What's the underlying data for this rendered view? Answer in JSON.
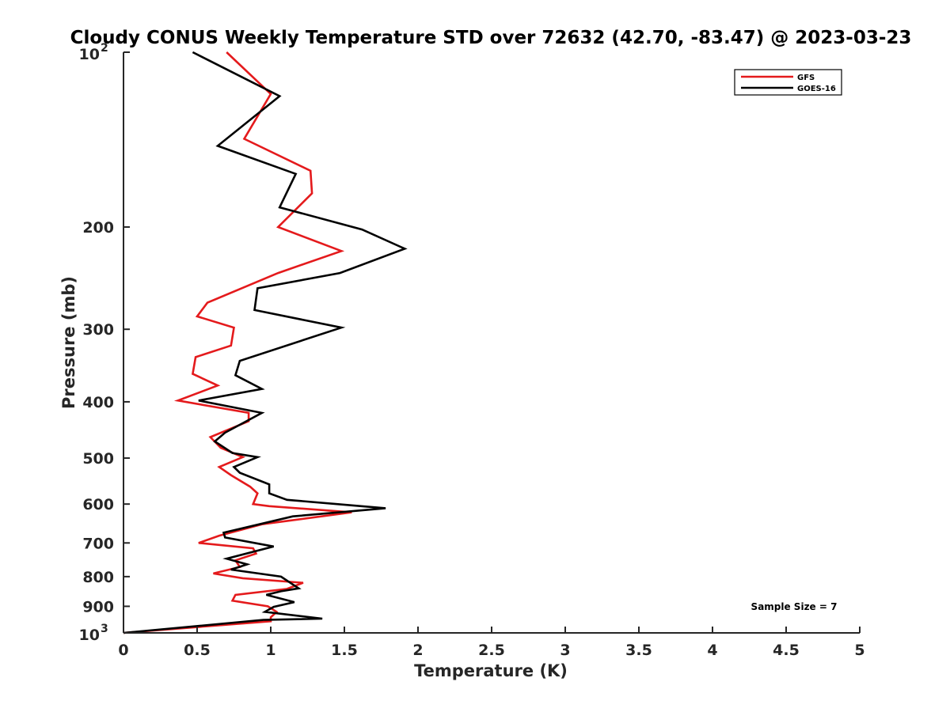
{
  "chart_data": {
    "type": "line",
    "title": "Cloudy CONUS Weekly Temperature STD over 72632 (42.70, -83.47) @ 2023-03-23",
    "xlabel": "Temperature (K)",
    "ylabel": "Pressure (mb)",
    "xlim": [
      0,
      5
    ],
    "ylim": [
      100,
      1000
    ],
    "y_scale": "log",
    "y_reversed": true,
    "x_ticks": [
      "0",
      "0.5",
      "1",
      "1.5",
      "2",
      "2.5",
      "3",
      "3.5",
      "4",
      "4.5",
      "5"
    ],
    "y_ticks": [
      {
        "value": 100,
        "base": "10",
        "exp": "2"
      },
      {
        "value": 200,
        "label": "200"
      },
      {
        "value": 300,
        "label": "300"
      },
      {
        "value": 400,
        "label": "400"
      },
      {
        "value": 500,
        "label": "500"
      },
      {
        "value": 600,
        "label": "600"
      },
      {
        "value": 700,
        "label": "700"
      },
      {
        "value": 800,
        "label": "800"
      },
      {
        "value": 900,
        "label": "900"
      },
      {
        "value": 1000,
        "base": "10",
        "exp": "3"
      }
    ],
    "grid": false,
    "legend_position": "top-right",
    "annotation": "Sample Size = 7",
    "series": [
      {
        "name": "GFS",
        "color": "#e41a1c",
        "points": [
          [
            0.7,
            100
          ],
          [
            1.0,
            118
          ],
          [
            0.82,
            141
          ],
          [
            1.27,
            160
          ],
          [
            1.28,
            175
          ],
          [
            1.05,
            200
          ],
          [
            1.48,
            220
          ],
          [
            1.05,
            240
          ],
          [
            0.57,
            270
          ],
          [
            0.5,
            285
          ],
          [
            0.75,
            298
          ],
          [
            0.73,
            320
          ],
          [
            0.49,
            335
          ],
          [
            0.47,
            358
          ],
          [
            0.64,
            375
          ],
          [
            0.37,
            398
          ],
          [
            0.85,
            418
          ],
          [
            0.85,
            432
          ],
          [
            0.59,
            460
          ],
          [
            0.66,
            480
          ],
          [
            0.81,
            498
          ],
          [
            0.65,
            518
          ],
          [
            0.73,
            535
          ],
          [
            0.86,
            560
          ],
          [
            0.91,
            575
          ],
          [
            0.88,
            600
          ],
          [
            0.99,
            605
          ],
          [
            1.55,
            620
          ],
          [
            0.94,
            650
          ],
          [
            0.65,
            680
          ],
          [
            0.51,
            700
          ],
          [
            0.88,
            715
          ],
          [
            0.9,
            730
          ],
          [
            0.76,
            750
          ],
          [
            0.79,
            770
          ],
          [
            0.61,
            790
          ],
          [
            0.81,
            805
          ],
          [
            1.22,
            820
          ],
          [
            1.11,
            840
          ],
          [
            0.76,
            860
          ],
          [
            0.74,
            880
          ],
          [
            0.98,
            900
          ],
          [
            1.04,
            920
          ],
          [
            1.0,
            940
          ],
          [
            1.0,
            955
          ],
          [
            0.0,
            1000
          ]
        ]
      },
      {
        "name": "GOES-16",
        "color": "#000000",
        "points": [
          [
            0.47,
            100
          ],
          [
            1.06,
            119
          ],
          [
            0.64,
            145
          ],
          [
            1.17,
            162
          ],
          [
            1.06,
            185
          ],
          [
            1.62,
            202
          ],
          [
            1.91,
            218
          ],
          [
            1.47,
            240
          ],
          [
            0.91,
            255
          ],
          [
            0.89,
            278
          ],
          [
            1.48,
            298
          ],
          [
            0.79,
            340
          ],
          [
            0.76,
            360
          ],
          [
            0.94,
            380
          ],
          [
            0.51,
            398
          ],
          [
            0.94,
            418
          ],
          [
            0.69,
            452
          ],
          [
            0.62,
            468
          ],
          [
            0.74,
            490
          ],
          [
            0.91,
            498
          ],
          [
            0.75,
            518
          ],
          [
            0.79,
            530
          ],
          [
            0.99,
            555
          ],
          [
            0.99,
            575
          ],
          [
            1.11,
            590
          ],
          [
            1.78,
            610
          ],
          [
            1.15,
            630
          ],
          [
            0.68,
            672
          ],
          [
            0.69,
            685
          ],
          [
            1.02,
            710
          ],
          [
            0.7,
            745
          ],
          [
            0.84,
            762
          ],
          [
            0.73,
            778
          ],
          [
            1.07,
            800
          ],
          [
            1.19,
            838
          ],
          [
            1.07,
            848
          ],
          [
            0.97,
            860
          ],
          [
            1.16,
            885
          ],
          [
            1.02,
            902
          ],
          [
            0.96,
            920
          ],
          [
            1.35,
            945
          ],
          [
            0.95,
            950
          ],
          [
            0.0,
            1000
          ]
        ]
      }
    ]
  }
}
